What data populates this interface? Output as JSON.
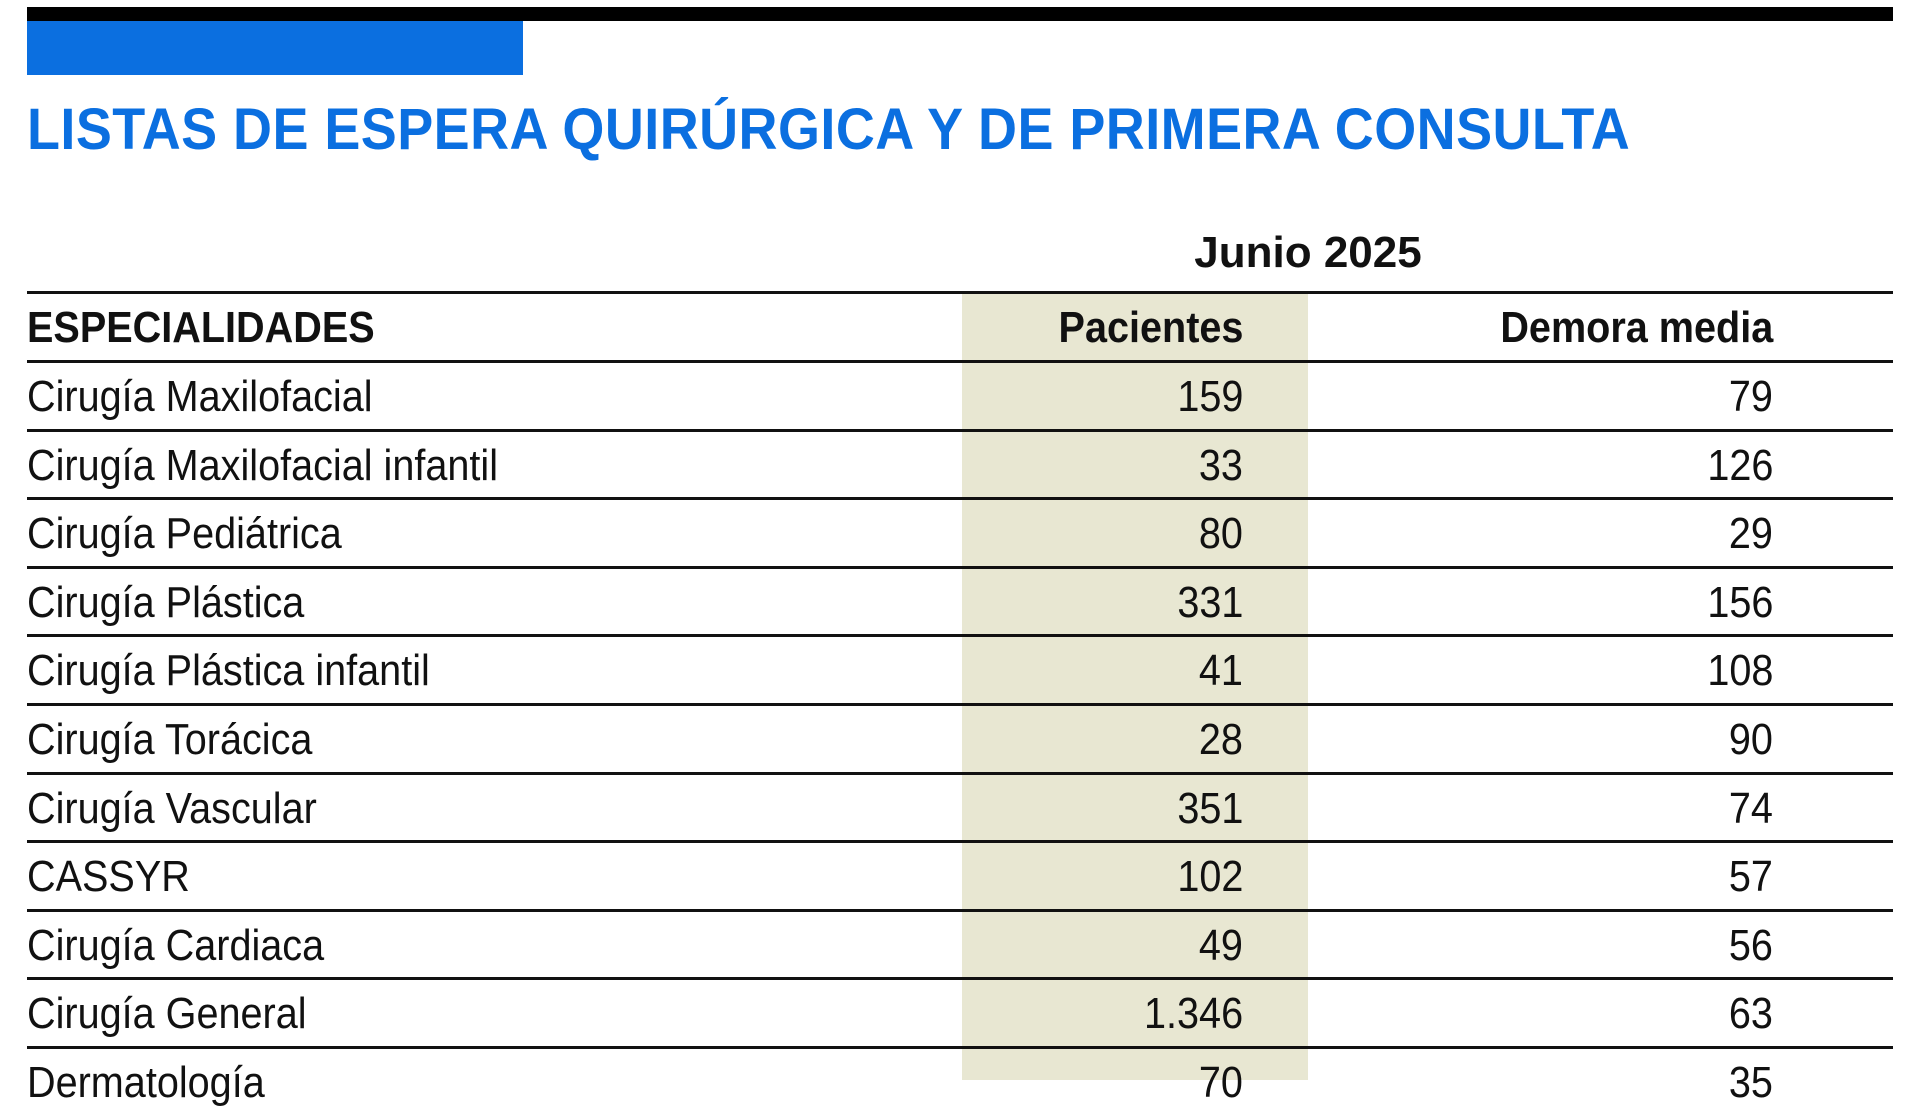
{
  "header": {
    "title": "LISTAS DE ESPERA QUIRÚRGICA Y DE PRIMERA CONSULTA",
    "period": "Junio 2025",
    "accent_color": "#0b6fe0",
    "shade_color": "#e8e7d2"
  },
  "table": {
    "columns": [
      "ESPECIALIDADES",
      "Pacientes",
      "Demora media"
    ],
    "rows": [
      {
        "especialidad": "Cirugía Maxilofacial",
        "pacientes": "159",
        "demora": "79"
      },
      {
        "especialidad": "Cirugía Maxilofacial infantil",
        "pacientes": "33",
        "demora": "126"
      },
      {
        "especialidad": "Cirugía Pediátrica",
        "pacientes": "80",
        "demora": "29"
      },
      {
        "especialidad": "Cirugía Plástica",
        "pacientes": "331",
        "demora": "156"
      },
      {
        "especialidad": "Cirugía Plástica infantil",
        "pacientes": "41",
        "demora": "108"
      },
      {
        "especialidad": "Cirugía Torácica",
        "pacientes": "28",
        "demora": "90"
      },
      {
        "especialidad": "Cirugía Vascular",
        "pacientes": "351",
        "demora": "74"
      },
      {
        "especialidad": "CASSYR",
        "pacientes": "102",
        "demora": "57"
      },
      {
        "especialidad": "Cirugía Cardiaca",
        "pacientes": "49",
        "demora": "56"
      },
      {
        "especialidad": "Cirugía General",
        "pacientes": "1.346",
        "demora": "63"
      },
      {
        "especialidad": "Dermatología",
        "pacientes": "70",
        "demora": "35"
      }
    ]
  }
}
